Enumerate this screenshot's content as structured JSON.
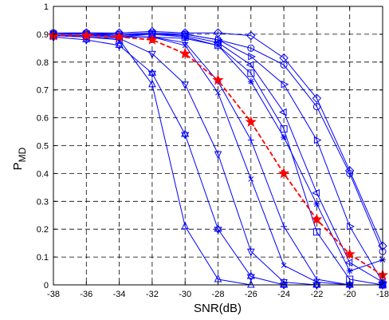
{
  "chart_data": {
    "type": "line",
    "xlabel": "SNR(dB)",
    "ylabel_main": "P",
    "ylabel_sub": "MD",
    "xlim": [
      -38,
      -18
    ],
    "ylim": [
      0,
      1
    ],
    "xticks": [
      -38,
      -36,
      -34,
      -32,
      -30,
      -28,
      -26,
      -24,
      -22,
      -20,
      -18
    ],
    "yticks": [
      0,
      0.1,
      0.2,
      0.3,
      0.4,
      0.5,
      0.6,
      0.7,
      0.8,
      0.9,
      1
    ],
    "ytick_labels": [
      "0",
      "0.1",
      "0.2",
      "0.3",
      "0.4",
      "0.5",
      "0.6",
      "0.7",
      "0.8",
      "0.9",
      "1"
    ],
    "grid": true,
    "series": [
      {
        "color": "#0000ff",
        "style": "solid",
        "marker": "o",
        "x": [
          -38,
          -36,
          -34,
          -32,
          -30,
          -28,
          -26,
          -24,
          -22,
          -20,
          -18
        ],
        "y": [
          0.905,
          0.905,
          0.9,
          0.905,
          0.9,
          0.88,
          0.85,
          0.79,
          0.64,
          0.4,
          0.12
        ]
      },
      {
        "color": "#0000ff",
        "style": "solid",
        "marker": "diamond",
        "x": [
          -38,
          -36,
          -34,
          -32,
          -30,
          -28,
          -26,
          -24,
          -22,
          -20,
          -18
        ],
        "y": [
          0.9,
          0.905,
          0.905,
          0.91,
          0.905,
          0.905,
          0.895,
          0.815,
          0.67,
          0.41,
          0.14
        ]
      },
      {
        "color": "#0000ff",
        "style": "solid",
        "marker": "triangle-right",
        "x": [
          -38,
          -36,
          -34,
          -32,
          -30,
          -28,
          -26,
          -24,
          -22,
          -20,
          -18
        ],
        "y": [
          0.9,
          0.9,
          0.9,
          0.9,
          0.9,
          0.88,
          0.82,
          0.72,
          0.52,
          0.21,
          0.01
        ]
      },
      {
        "color": "#0000ff",
        "style": "solid",
        "marker": "triangle-left",
        "x": [
          -38,
          -36,
          -34,
          -32,
          -30,
          -28,
          -26,
          -24,
          -22,
          -20,
          -18
        ],
        "y": [
          0.9,
          0.9,
          0.895,
          0.9,
          0.895,
          0.87,
          0.79,
          0.62,
          0.33,
          0.08,
          0.01
        ]
      },
      {
        "color": "#0000ff",
        "style": "solid",
        "marker": "square",
        "x": [
          -38,
          -36,
          -34,
          -32,
          -30,
          -28,
          -26,
          -24,
          -22,
          -20,
          -18
        ],
        "y": [
          0.9,
          0.9,
          0.89,
          0.9,
          0.89,
          0.86,
          0.76,
          0.56,
          0.19,
          0.02,
          0.0
        ]
      },
      {
        "color": "#0000ff",
        "style": "solid",
        "marker": "asterisk",
        "x": [
          -38,
          -36,
          -34,
          -32,
          -30,
          -28,
          -26,
          -24,
          -22,
          -20,
          -18
        ],
        "y": [
          0.9,
          0.9,
          0.89,
          0.89,
          0.885,
          0.86,
          0.73,
          0.53,
          0.29,
          0.05,
          0.09
        ]
      },
      {
        "color": "#0000ff",
        "style": "solid",
        "marker": "plus",
        "x": [
          -38,
          -36,
          -34,
          -32,
          -30,
          -28,
          -26,
          -24,
          -22,
          -20,
          -18
        ],
        "y": [
          0.895,
          0.895,
          0.89,
          0.89,
          0.87,
          0.73,
          0.52,
          0.21,
          0.02,
          0.0,
          0.0
        ]
      },
      {
        "color": "#0000ff",
        "style": "solid",
        "marker": "x",
        "x": [
          -38,
          -36,
          -34,
          -32,
          -30,
          -28,
          -26,
          -24,
          -22,
          -20,
          -18
        ],
        "y": [
          0.895,
          0.895,
          0.89,
          0.89,
          0.86,
          0.69,
          0.38,
          0.07,
          0.01,
          0.0,
          0.0
        ]
      },
      {
        "color": "#0000ff",
        "style": "solid",
        "marker": "triangle-down",
        "x": [
          -38,
          -36,
          -34,
          -32,
          -30,
          -28,
          -26,
          -24,
          -22,
          -20,
          -18
        ],
        "y": [
          0.895,
          0.89,
          0.885,
          0.83,
          0.72,
          0.47,
          0.12,
          0.01,
          0.0,
          0.0,
          0.0
        ]
      },
      {
        "color": "#0000ff",
        "style": "solid",
        "marker": "triangle-up",
        "x": [
          -38,
          -36,
          -34,
          -32,
          -30,
          -28,
          -26,
          -24,
          -22,
          -20,
          -18
        ],
        "y": [
          0.895,
          0.89,
          0.88,
          0.72,
          0.21,
          0.02,
          0.0,
          0.0,
          0.0,
          0.0,
          0.0
        ]
      },
      {
        "color": "#0000ff",
        "style": "solid",
        "marker": "hexagram",
        "x": [
          -38,
          -36,
          -34,
          -32,
          -30,
          -28,
          -26,
          -24,
          -22,
          -20,
          -18
        ],
        "y": [
          0.89,
          0.88,
          0.86,
          0.76,
          0.54,
          0.2,
          0.03,
          0.0,
          0.0,
          0.0,
          0.0
        ]
      },
      {
        "color": "#ff0000",
        "style": "dashed",
        "marker": "star",
        "x": [
          -38,
          -36,
          -34,
          -32,
          -30,
          -28,
          -26,
          -24,
          -22,
          -20,
          -18
        ],
        "y": [
          0.895,
          0.895,
          0.89,
          0.88,
          0.83,
          0.735,
          0.585,
          0.4,
          0.235,
          0.11,
          0.035
        ]
      }
    ]
  }
}
